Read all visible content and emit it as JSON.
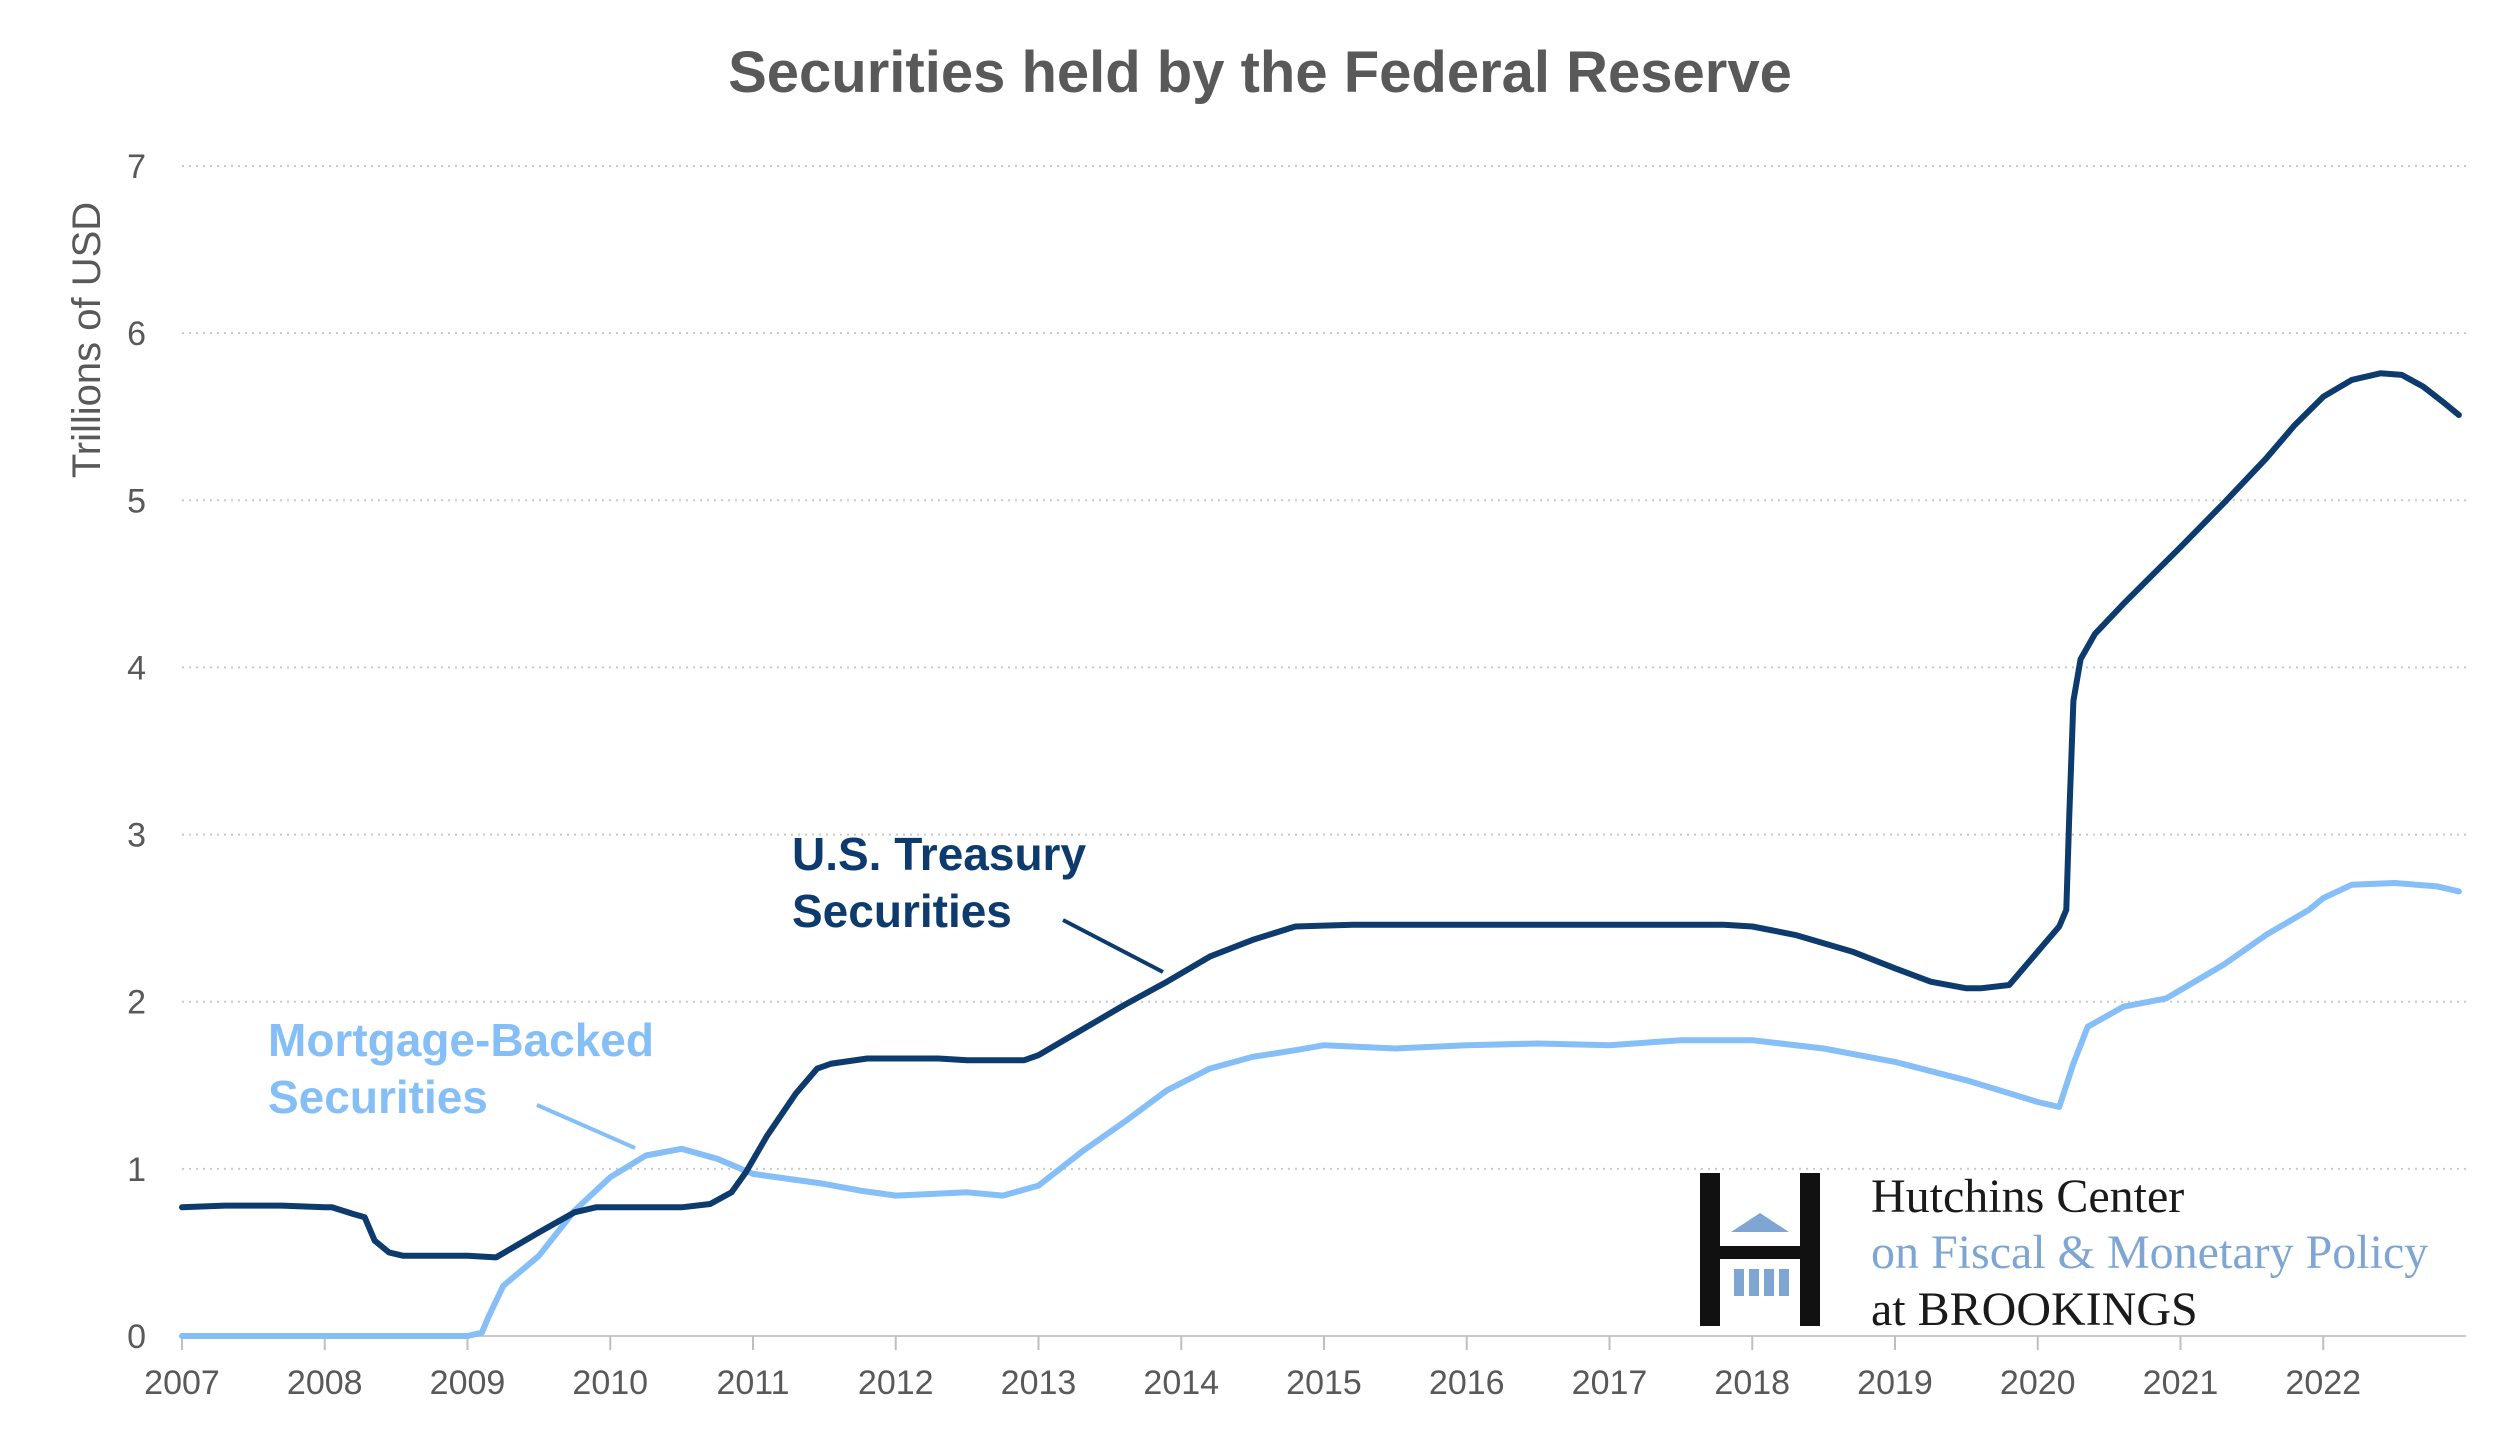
{
  "chart_data": {
    "type": "line",
    "title": "Securities held by the Federal Reserve",
    "ylabel": "Trillions of USD",
    "xlabel": "",
    "xlim": [
      2007,
      2023
    ],
    "ylim": [
      0,
      7
    ],
    "y_ticks": [
      "0",
      "1",
      "2",
      "3",
      "4",
      "5",
      "6",
      "7"
    ],
    "x_ticks": [
      "2007",
      "2008",
      "2009",
      "2010",
      "2011",
      "2012",
      "2013",
      "2014",
      "2015",
      "2016",
      "2017",
      "2018",
      "2019",
      "2020",
      "2021",
      "2022"
    ],
    "grid": "horizontal dotted",
    "series": [
      {
        "name": "U.S. Treasury Securities",
        "label_lines": [
          "U.S. Treasury",
          "Securities"
        ],
        "color": "#0d3b6e",
        "x": [
          2007.0,
          2007.3,
          2007.7,
          2008.0,
          2008.05,
          2008.2,
          2008.28,
          2008.35,
          2008.45,
          2008.55,
          2008.8,
          2009.0,
          2009.2,
          2009.3,
          2009.5,
          2009.75,
          2009.9,
          2010.0,
          2010.5,
          2010.7,
          2010.85,
          2010.95,
          2011.1,
          2011.3,
          2011.45,
          2011.55,
          2011.8,
          2012.0,
          2012.3,
          2012.5,
          2012.7,
          2012.9,
          2013.0,
          2013.3,
          2013.6,
          2013.9,
          2014.2,
          2014.5,
          2014.8,
          2015.2,
          2016.0,
          2016.6,
          2017.0,
          2017.5,
          2017.8,
          2018.0,
          2018.3,
          2018.7,
          2019.0,
          2019.25,
          2019.5,
          2019.6,
          2019.8,
          2019.95,
          2020.05,
          2020.15,
          2020.2,
          2020.22,
          2020.25,
          2020.3,
          2020.4,
          2020.6,
          2020.8,
          2021.0,
          2021.3,
          2021.6,
          2021.8,
          2022.0,
          2022.2,
          2022.4,
          2022.55,
          2022.7,
          2022.85,
          2022.95
        ],
        "values": [
          0.77,
          0.78,
          0.78,
          0.77,
          0.77,
          0.73,
          0.71,
          0.57,
          0.5,
          0.48,
          0.48,
          0.48,
          0.47,
          0.52,
          0.62,
          0.74,
          0.77,
          0.77,
          0.77,
          0.79,
          0.86,
          0.98,
          1.2,
          1.45,
          1.6,
          1.63,
          1.66,
          1.66,
          1.66,
          1.65,
          1.65,
          1.65,
          1.68,
          1.83,
          1.98,
          2.12,
          2.27,
          2.37,
          2.45,
          2.46,
          2.46,
          2.46,
          2.46,
          2.46,
          2.46,
          2.45,
          2.4,
          2.3,
          2.2,
          2.12,
          2.08,
          2.08,
          2.1,
          2.25,
          2.35,
          2.45,
          2.55,
          3.1,
          3.8,
          4.05,
          4.2,
          4.38,
          4.55,
          4.72,
          4.98,
          5.25,
          5.45,
          5.62,
          5.72,
          5.76,
          5.75,
          5.68,
          5.58,
          5.51
        ]
      },
      {
        "name": "Mortgage-Backed Securities",
        "label_lines": [
          "Mortgage-Backed",
          "Securities"
        ],
        "color": "#86bff7",
        "x": [
          2007.0,
          2008.0,
          2009.0,
          2009.1,
          2009.15,
          2009.25,
          2009.5,
          2009.75,
          2010.0,
          2010.25,
          2010.5,
          2010.75,
          2011.0,
          2011.5,
          2011.75,
          2012.0,
          2012.5,
          2012.75,
          2013.0,
          2013.3,
          2013.6,
          2013.9,
          2014.2,
          2014.5,
          2014.8,
          2015.0,
          2015.5,
          2016.0,
          2016.5,
          2017.0,
          2017.5,
          2018.0,
          2018.5,
          2019.0,
          2019.5,
          2020.0,
          2020.15,
          2020.25,
          2020.35,
          2020.6,
          2020.9,
          2021.0,
          2021.3,
          2021.6,
          2021.9,
          2022.0,
          2022.2,
          2022.5,
          2022.8,
          2022.95
        ],
        "values": [
          0.0,
          0.0,
          0.0,
          0.02,
          0.12,
          0.3,
          0.48,
          0.75,
          0.95,
          1.08,
          1.12,
          1.06,
          0.97,
          0.91,
          0.87,
          0.84,
          0.86,
          0.84,
          0.9,
          1.1,
          1.28,
          1.47,
          1.6,
          1.67,
          1.71,
          1.74,
          1.72,
          1.74,
          1.75,
          1.74,
          1.77,
          1.77,
          1.72,
          1.64,
          1.53,
          1.4,
          1.37,
          1.63,
          1.85,
          1.97,
          2.02,
          2.07,
          2.22,
          2.4,
          2.55,
          2.62,
          2.7,
          2.71,
          2.69,
          2.66
        ]
      }
    ]
  },
  "logo": {
    "line1": "Hutchins Center",
    "line2": "on Fiscal & Monetary Policy",
    "line3": "at BROOKINGS"
  }
}
